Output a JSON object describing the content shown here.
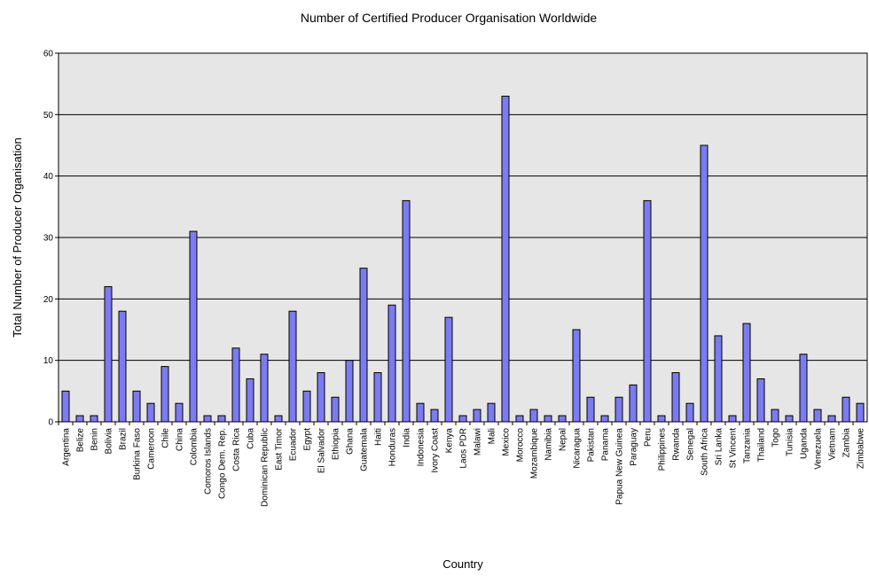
{
  "chart_data": {
    "type": "bar",
    "title": "Number of Certified Producer Organisation Worldwide",
    "xlabel": "Country",
    "ylabel": "Total Number of Producer Organisation",
    "ylim": [
      0,
      60
    ],
    "yticks": [
      0,
      10,
      20,
      30,
      40,
      50,
      60
    ],
    "grid": true,
    "legend": "none",
    "colors": {
      "bar_fill": "#7b7bf2",
      "bar_stroke": "#000000",
      "plot_bg": "#e6e6e6"
    },
    "categories": [
      "Argentina",
      "Belize",
      "Benin",
      "Bolivia",
      "Brazil",
      "Burkina Faso",
      "Cameroon",
      "Chile",
      "China",
      "Colombia",
      "Comoros Islands",
      "Congo Dem. Rep.",
      "Costa Rica",
      "Cuba",
      "Dominican Republic",
      "East Timor",
      "Ecuador",
      "Egypt",
      "El Salvador",
      "Ethiopia",
      "Ghana",
      "Guatemala",
      "Haiti",
      "Honduras",
      "India",
      "Indonesia",
      "Ivory Coast",
      "Kenya",
      "Laos PDR",
      "Malawi",
      "Mali",
      "Mexico",
      "Morocco",
      "Mozambique",
      "Namibia",
      "Nepal",
      "Nicaragua",
      "Pakistan",
      "Panama",
      "Papua New Guinea",
      "Paraguay",
      "Peru",
      "Philippines",
      "Rwanda",
      "Senegal",
      "South Africa",
      "Sri Lanka",
      "St Vincent",
      "Tanzania",
      "Thailand",
      "Togo",
      "Tunisia",
      "Uganda",
      "Venezuela",
      "Vietnam",
      "Zambia",
      "Zimbabwe"
    ],
    "values": [
      5,
      1,
      1,
      22,
      18,
      5,
      3,
      9,
      3,
      31,
      1,
      1,
      12,
      7,
      11,
      1,
      18,
      5,
      8,
      4,
      10,
      25,
      8,
      19,
      36,
      3,
      2,
      17,
      1,
      2,
      3,
      53,
      1,
      2,
      1,
      1,
      15,
      4,
      1,
      4,
      6,
      36,
      1,
      8,
      3,
      45,
      14,
      1,
      16,
      7,
      2,
      1,
      11,
      2,
      1,
      4,
      3
    ]
  }
}
